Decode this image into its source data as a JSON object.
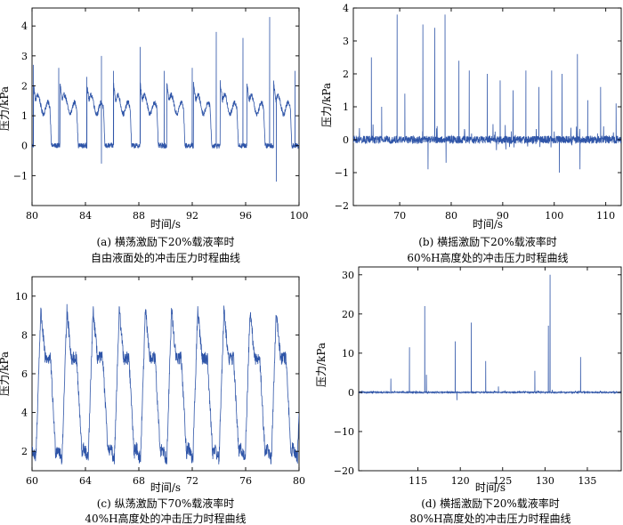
{
  "chart_data": [
    {
      "id": "a",
      "type": "line",
      "color": "#2f55a8",
      "xlabel": "时间/s",
      "ylabel": "压力/kPa",
      "xlim": [
        80,
        100
      ],
      "ylim": [
        -2,
        4.6
      ],
      "xticks": [
        80,
        84,
        88,
        92,
        96,
        100
      ],
      "yticks": [
        -1,
        0,
        1,
        2,
        3,
        4
      ],
      "caption_line1": "(a) 横荡激励下20%载液率时",
      "caption_line2": "自由液面处的冲击压力时程曲线",
      "signal": {
        "kind": "sloshing-periodic",
        "start": 80.1,
        "period": 2.0,
        "base": 0.0,
        "plateau": [
          1.5,
          1.3
        ],
        "peaks": [
          {
            "x": 80.1,
            "y": 2.7
          },
          {
            "x": 82.0,
            "y": 2.6
          },
          {
            "x": 84.1,
            "y": 2.3
          },
          {
            "x": 85.2,
            "y": 3.0
          },
          {
            "x": 86.1,
            "y": 2.5
          },
          {
            "x": 88.1,
            "y": 3.3
          },
          {
            "x": 89.9,
            "y": 2.5
          },
          {
            "x": 92.0,
            "y": 2.6
          },
          {
            "x": 93.8,
            "y": 3.8
          },
          {
            "x": 95.8,
            "y": 3.6
          },
          {
            "x": 97.8,
            "y": 4.3
          },
          {
            "x": 98.3,
            "y": -1.2
          },
          {
            "x": 99.7,
            "y": 2.5
          },
          {
            "x": 85.2,
            "y": -0.6
          }
        ]
      }
    },
    {
      "id": "b",
      "type": "line",
      "color": "#2f55a8",
      "xlabel": "时间/s",
      "ylabel": "压力/kPa",
      "xlim": [
        61,
        113
      ],
      "ylim": [
        -2,
        4
      ],
      "xticks": [
        70,
        80,
        90,
        100,
        110
      ],
      "yticks": [
        -2,
        -1,
        0,
        1,
        2,
        3,
        4
      ],
      "caption_line1": "(b) 横摇激励下20%载液率时",
      "caption_line2": "60%H高度处的冲击压力时程曲线",
      "signal": {
        "kind": "spiky",
        "base": 0.0,
        "noise": 0.12,
        "peaks": [
          {
            "x": 64.5,
            "y": 2.5
          },
          {
            "x": 66.5,
            "y": 1.0
          },
          {
            "x": 69.5,
            "y": 3.8
          },
          {
            "x": 71.0,
            "y": 1.4
          },
          {
            "x": 74.5,
            "y": 3.5
          },
          {
            "x": 76.8,
            "y": 3.4
          },
          {
            "x": 78.8,
            "y": 3.8
          },
          {
            "x": 81.5,
            "y": 2.4
          },
          {
            "x": 83.5,
            "y": 2.1
          },
          {
            "x": 87.0,
            "y": 2.0
          },
          {
            "x": 89.5,
            "y": 1.8
          },
          {
            "x": 92.0,
            "y": 1.5
          },
          {
            "x": 94.5,
            "y": 2.1
          },
          {
            "x": 97.0,
            "y": 1.6
          },
          {
            "x": 99.5,
            "y": 2.1
          },
          {
            "x": 101.5,
            "y": 2.0
          },
          {
            "x": 104.5,
            "y": 2.6
          },
          {
            "x": 106.5,
            "y": 1.2
          },
          {
            "x": 109.0,
            "y": 1.6
          },
          {
            "x": 112.0,
            "y": 1.1
          },
          {
            "x": 75.5,
            "y": -0.9
          },
          {
            "x": 79.0,
            "y": -0.7
          },
          {
            "x": 101.0,
            "y": -1.0
          },
          {
            "x": 105.0,
            "y": -0.9
          }
        ]
      }
    },
    {
      "id": "c",
      "type": "line",
      "color": "#2f55a8",
      "xlabel": "时间/s",
      "ylabel": "压力/kPa",
      "xlim": [
        60,
        80
      ],
      "ylim": [
        1,
        11
      ],
      "xticks": [
        60,
        64,
        68,
        72,
        76,
        80
      ],
      "yticks": [
        2,
        4,
        6,
        8,
        10
      ],
      "caption_line1": "(c) 纵荡激励下70%载液率时",
      "caption_line2": "40%H高度处的冲击压力时程曲线",
      "signal": {
        "kind": "oscillation",
        "start": 60.3,
        "period": 1.96,
        "low": 1.9,
        "high_peak": 9.3,
        "plateau": 6.8,
        "noise": 0.35
      }
    },
    {
      "id": "d",
      "type": "line",
      "color": "#2f55a8",
      "xlabel": "时间/s",
      "ylabel": "压力/kPa",
      "xlim": [
        108,
        139
      ],
      "ylim": [
        -20,
        32
      ],
      "xticks": [
        115,
        120,
        125,
        130,
        135
      ],
      "yticks": [
        -20,
        -10,
        0,
        10,
        20,
        30
      ],
      "caption_line1": "(d) 横摇激励下20%载液率时",
      "caption_line2": "80%H高度处的冲击压力时程曲线",
      "signal": {
        "kind": "spiky",
        "base": 0.0,
        "noise": 0.15,
        "peaks": [
          {
            "x": 111.8,
            "y": 3.5
          },
          {
            "x": 114.0,
            "y": 11.5
          },
          {
            "x": 115.8,
            "y": 22.0
          },
          {
            "x": 119.4,
            "y": 13.0
          },
          {
            "x": 121.3,
            "y": 17.8
          },
          {
            "x": 123.0,
            "y": 8.0
          },
          {
            "x": 124.5,
            "y": 1.5
          },
          {
            "x": 128.8,
            "y": 5.5
          },
          {
            "x": 130.6,
            "y": 30.0
          },
          {
            "x": 130.4,
            "y": 17.0
          },
          {
            "x": 134.2,
            "y": 9.0
          },
          {
            "x": 116.0,
            "y": 4.5
          },
          {
            "x": 119.6,
            "y": -2.0
          }
        ]
      }
    }
  ]
}
